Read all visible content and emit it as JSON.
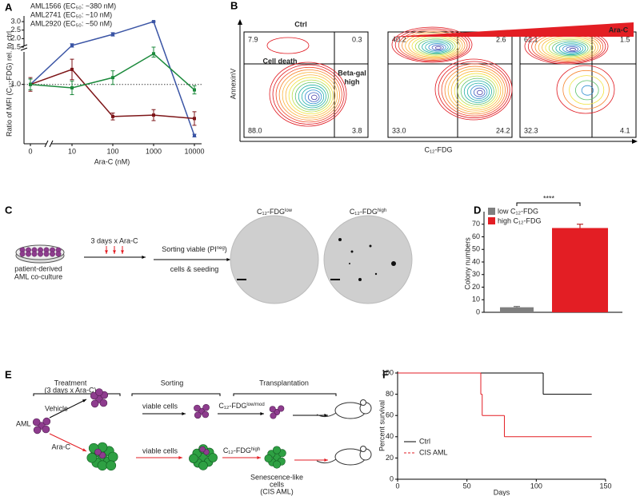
{
  "panel_labels": [
    "A",
    "B",
    "C",
    "D",
    "E",
    "F"
  ],
  "chart_data": [
    {
      "type": "line",
      "ylabel": "Ratio of MFI (C₁₂-FDG) rel. to ctrl",
      "xlabel": "Ara-C (nM)",
      "categories": [
        "0",
        "10",
        "100",
        "1000",
        "10000"
      ],
      "series": [
        {
          "name": "AML1566 (EC₅₀: ~380 nM)",
          "color": "#3b55a5",
          "values": [
            1.0,
            1.6,
            2.25,
            3.0,
            0.25
          ],
          "errors": [
            0.08,
            0.1,
            0.1,
            0.04,
            0.02
          ]
        },
        {
          "name": "AML2741 (EC₅₀: ~10 nM)",
          "color": "#7d1518",
          "values": [
            1.0,
            1.22,
            0.53,
            0.55,
            0.5
          ],
          "errors": [
            0.1,
            0.15,
            0.05,
            0.08,
            0.1
          ]
        },
        {
          "name": "AML2920 (EC₅₀: ~50 nM)",
          "color": "#1c8a3c",
          "values": [
            1.0,
            0.95,
            1.1,
            1.45,
            0.92
          ],
          "errors": [
            0.08,
            0.1,
            0.1,
            0.05,
            0.06
          ]
        }
      ],
      "ylim": [
        0.2,
        3.05
      ],
      "y_break": 1.5,
      "yticks": [
        {
          "value": 1,
          "label": "1.0"
        },
        1.5,
        {
          "value": 2,
          "label": "2.0"
        },
        2.5,
        {
          "value": 3,
          "label": "3.0"
        }
      ],
      "reference_line": 1
    },
    {
      "type": "bar",
      "ylabel": "Colony numbers",
      "annotation": "****",
      "series": [
        {
          "name": "low C₁₂-FDG",
          "color": "#7f7f7f",
          "values": [
            4
          ],
          "errors": [
            0.6
          ]
        },
        {
          "name": "high C₁₂-FDG",
          "color": "#e31e24",
          "values": [
            67
          ],
          "errors": [
            3
          ]
        }
      ],
      "ylim": [
        0,
        80
      ],
      "yticks": [
        0,
        10,
        20,
        30,
        40,
        50,
        60,
        70
      ]
    },
    {
      "type": "step",
      "xlabel": "Days",
      "ylabel": "Percent survival",
      "series": [
        {
          "name": "Ctrl",
          "color": "#000000",
          "x": [
            0,
            105,
            140
          ],
          "values": [
            100,
            80,
            80
          ]
        },
        {
          "name": "CIS AML",
          "color": "#e31e24",
          "x": [
            0,
            60,
            61,
            77,
            140
          ],
          "values": [
            100,
            80,
            60,
            40,
            40
          ]
        }
      ],
      "xlim": [
        0,
        150
      ],
      "xticks": [
        0,
        50,
        100,
        150
      ],
      "ylim": [
        0,
        100
      ],
      "yticks": [
        0,
        20,
        40,
        60,
        80,
        100
      ]
    }
  ],
  "flow_cytometry": {
    "conditions": [
      "Ctrl",
      "Ara-C"
    ],
    "xlabel": "C₁₂-FDG",
    "ylabel": "AnnexinV",
    "cell_death": "Cell death",
    "beta_gal": [
      "Beta-gal",
      "high"
    ],
    "plots": [
      {
        "quadrants": [
          "7.9",
          "0.3",
          "88.0",
          "3.8"
        ]
      },
      {
        "quadrants": [
          "40.2",
          "2.6",
          "33.0",
          "24.2"
        ]
      },
      {
        "quadrants": [
          "62.1",
          "1.5",
          "32.3",
          "4.1"
        ]
      }
    ]
  },
  "colony_assay": {
    "culture": [
      "patient-derived",
      "AML co-culture"
    ],
    "treatment": "3 days x Ara-C",
    "sorting": [
      [
        "Sorting viable (PI",
        {
          "sup": "neg"
        },
        ")"
      ],
      [
        "cells & seeding"
      ]
    ],
    "wells": [
      [
        "C₁₂-FDG",
        {
          "sup": "low"
        }
      ],
      [
        "C₁₂-FDG",
        {
          "sup": "high"
        }
      ]
    ]
  },
  "transplant_schematic": {
    "headers": [
      "Treatment",
      "Sorting",
      "Transplantation"
    ],
    "treatment_note": "(3 days x Ara-C)",
    "start": "AML",
    "arms": [
      {
        "treatment": "Vehicle",
        "sorting": "viable cells",
        "fraction": [
          "C₁₂-FDG",
          {
            "sup": "low/mod"
          }
        ]
      },
      {
        "treatment": "Ara-C",
        "sorting": "viable cells",
        "fraction": [
          "C₁₂-FDG",
          {
            "sup": "high"
          }
        ],
        "note": [
          "Senescence-like",
          "cells",
          "(CIS AML)"
        ]
      }
    ]
  }
}
